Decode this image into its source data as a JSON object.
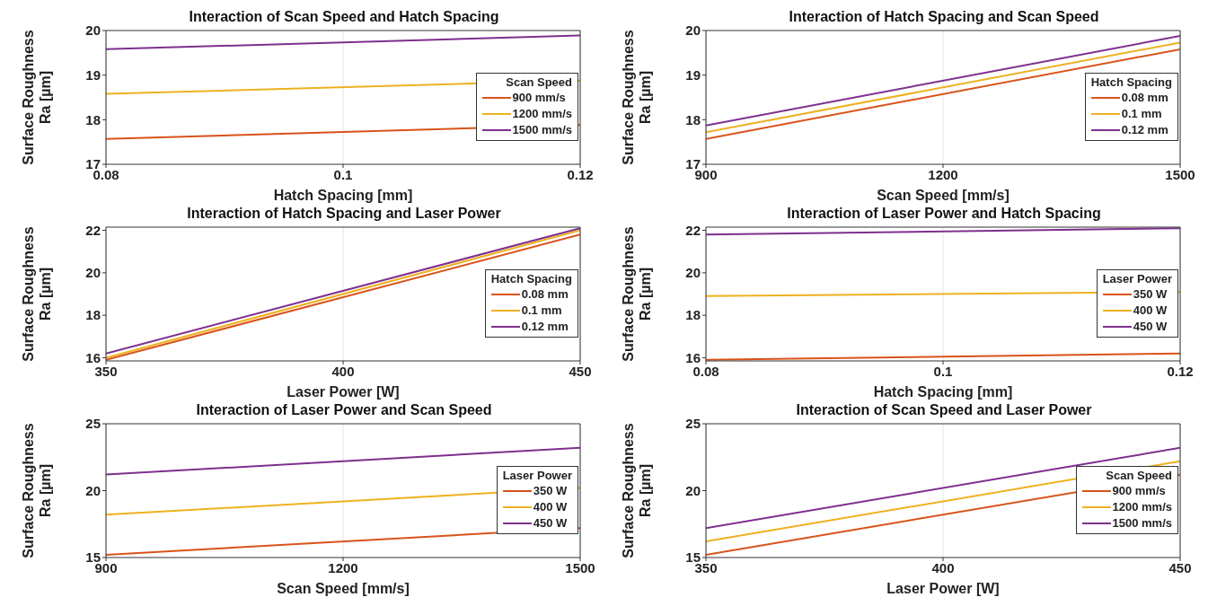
{
  "chart_data": [
    {
      "type": "line",
      "title": "Interaction of Scan Speed and Hatch Spacing",
      "xlabel": "Hatch Spacing [mm]",
      "ylabel": "Surface Roughness\nRa [µm]",
      "legend_title": "Scan Speed",
      "x": [
        0.08,
        0.12
      ],
      "xlim": [
        0.08,
        0.12
      ],
      "xticks": [
        0.08,
        0.1,
        0.12
      ],
      "ylim": [
        17,
        20
      ],
      "yticks": [
        17,
        18,
        19,
        20
      ],
      "grid": "x",
      "legend": "bottom right",
      "series": [
        {
          "name": "900 mm/s",
          "color": "#d95319",
          "values": [
            17.57,
            17.88
          ]
        },
        {
          "name": "1200 mm/s",
          "color": "#edb120",
          "values": [
            18.58,
            18.88
          ]
        },
        {
          "name": "1500 mm/s",
          "color": "#7e2f8e",
          "values": [
            19.58,
            19.89
          ]
        }
      ]
    },
    {
      "type": "line",
      "title": "Interaction of Hatch Spacing and Scan Speed",
      "xlabel": "Scan Speed [mm/s]",
      "ylabel": "Surface Roughness\nRa [µm]",
      "legend_title": "Hatch Spacing",
      "x": [
        900,
        1500
      ],
      "xlim": [
        900,
        1500
      ],
      "xticks": [
        900,
        1200,
        1500
      ],
      "ylim": [
        17,
        20
      ],
      "yticks": [
        17,
        18,
        19,
        20
      ],
      "grid": "x",
      "legend": "bottom right",
      "series": [
        {
          "name": "0.08 mm",
          "color": "#d95319",
          "values": [
            17.57,
            19.58
          ]
        },
        {
          "name": "0.1 mm",
          "color": "#edb120",
          "values": [
            17.72,
            19.73
          ]
        },
        {
          "name": "0.12 mm",
          "color": "#7e2f8e",
          "values": [
            17.87,
            19.88
          ]
        }
      ]
    },
    {
      "type": "line",
      "title": "Interaction of Hatch Spacing and Laser Power",
      "xlabel": "Laser Power [W]",
      "ylabel": "Surface Roughness\nRa [µm]",
      "legend_title": "Hatch Spacing",
      "x": [
        350,
        450
      ],
      "xlim": [
        350,
        450
      ],
      "xticks": [
        350,
        400,
        450
      ],
      "ylim": [
        15.85,
        22.15
      ],
      "yticks": [
        16,
        18,
        20,
        22
      ],
      "grid": "x",
      "legend": "bottom right",
      "series": [
        {
          "name": "0.08 mm",
          "color": "#d95319",
          "values": [
            15.9,
            21.8
          ]
        },
        {
          "name": "0.1 mm",
          "color": "#edb120",
          "values": [
            16,
            22
          ]
        },
        {
          "name": "0.12 mm",
          "color": "#7e2f8e",
          "values": [
            16.2,
            22.1
          ]
        }
      ]
    },
    {
      "type": "line",
      "title": "Interaction of Laser Power and Hatch Spacing",
      "xlabel": "Hatch Spacing [mm]",
      "ylabel": "Surface Roughness\nRa [µm]",
      "legend_title": "Laser Power",
      "x": [
        0.08,
        0.12
      ],
      "xlim": [
        0.08,
        0.12
      ],
      "xticks": [
        0.08,
        0.1,
        0.12
      ],
      "ylim": [
        15.85,
        22.15
      ],
      "yticks": [
        16,
        18,
        20,
        22
      ],
      "grid": "x",
      "legend": "bottom right",
      "series": [
        {
          "name": "350 W",
          "color": "#d95319",
          "values": [
            15.9,
            16.2
          ]
        },
        {
          "name": "400 W",
          "color": "#edb120",
          "values": [
            18.9,
            19.1
          ]
        },
        {
          "name": "450 W",
          "color": "#7e2f8e",
          "values": [
            21.8,
            22.1
          ]
        }
      ]
    },
    {
      "type": "line",
      "title": "Interaction of Laser Power and Scan Speed",
      "xlabel": "Scan Speed [mm/s]",
      "ylabel": "Surface Roughness\nRa [µm]",
      "legend_title": "Laser Power",
      "x": [
        900,
        1500
      ],
      "xlim": [
        900,
        1500
      ],
      "xticks": [
        900,
        1200,
        1500
      ],
      "ylim": [
        15,
        25
      ],
      "yticks": [
        15,
        20,
        25
      ],
      "grid": "x",
      "legend": "bottom right",
      "series": [
        {
          "name": "350 W",
          "color": "#d95319",
          "values": [
            15.2,
            17.2
          ]
        },
        {
          "name": "400 W",
          "color": "#edb120",
          "values": [
            18.2,
            20.2
          ]
        },
        {
          "name": "450 W",
          "color": "#7e2f8e",
          "values": [
            21.2,
            23.2
          ]
        }
      ]
    },
    {
      "type": "line",
      "title": "Interaction of Scan Speed and Laser Power",
      "xlabel": "Laser Power [W]",
      "ylabel": "Surface Roughness\nRa [µm]",
      "legend_title": "Scan Speed",
      "x": [
        350,
        450
      ],
      "xlim": [
        350,
        450
      ],
      "xticks": [
        350,
        400,
        450
      ],
      "ylim": [
        15,
        25
      ],
      "yticks": [
        15,
        20,
        25
      ],
      "grid": "x",
      "legend": "bottom right",
      "series": [
        {
          "name": "900 mm/s",
          "color": "#d95319",
          "values": [
            15.2,
            21.2
          ]
        },
        {
          "name": "1200 mm/s",
          "color": "#edb120",
          "values": [
            16.2,
            22.2
          ]
        },
        {
          "name": "1500 mm/s",
          "color": "#7e2f8e",
          "values": [
            17.2,
            23.2
          ]
        }
      ]
    }
  ]
}
